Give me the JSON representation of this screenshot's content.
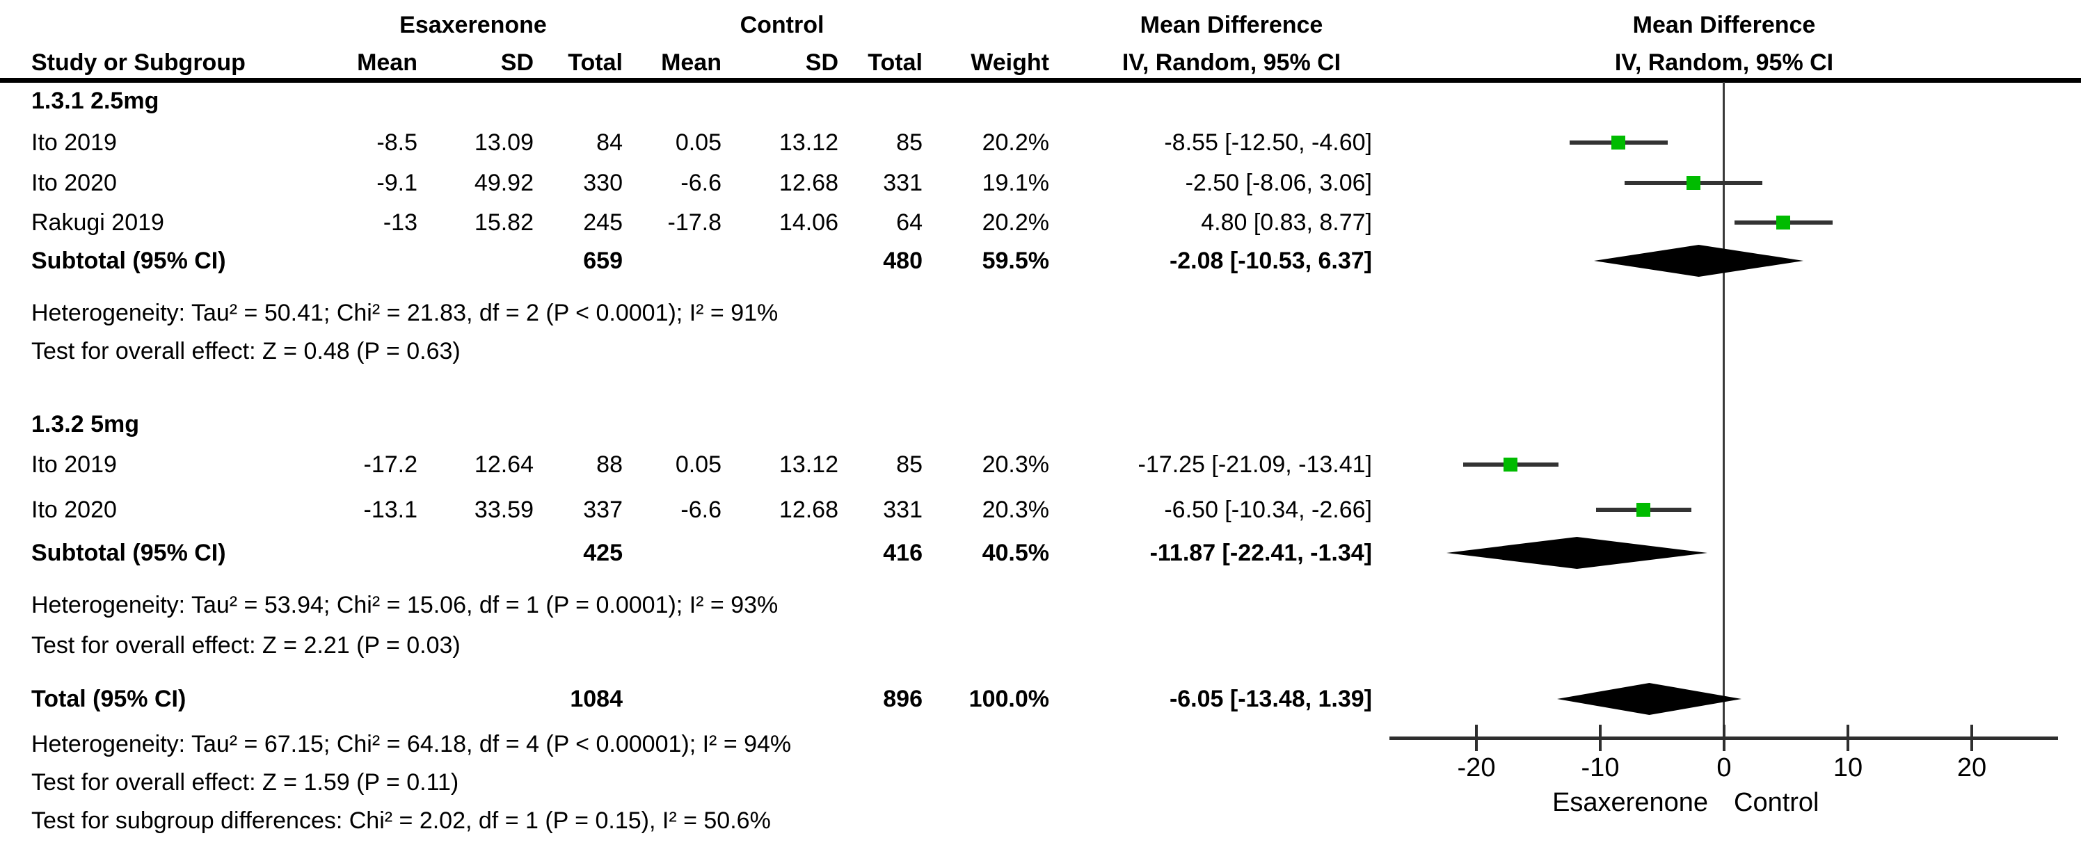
{
  "headers": {
    "esaxerenone": "Esaxerenone",
    "control": "Control",
    "md_table": "Mean Difference",
    "md_plot": "Mean Difference",
    "study_or_subgroup": "Study or Subgroup",
    "mean": "Mean",
    "sd": "SD",
    "total": "Total",
    "weight": "Weight",
    "iv_random": "IV, Random, 95% CI"
  },
  "table": {
    "sections": [
      {
        "label": "1.3.1 2.5mg",
        "studies": [
          {
            "name": "Ito 2019",
            "mean_e": "-8.5",
            "sd_e": "13.09",
            "n_e": "84",
            "mean_c": "0.05",
            "sd_c": "13.12",
            "n_c": "85",
            "weight": "20.2%",
            "md_ci": "-8.55 [-12.50, -4.60]"
          },
          {
            "name": "Ito 2020",
            "mean_e": "-9.1",
            "sd_e": "49.92",
            "n_e": "330",
            "mean_c": "-6.6",
            "sd_c": "12.68",
            "n_c": "331",
            "weight": "19.1%",
            "md_ci": "-2.50 [-8.06, 3.06]"
          },
          {
            "name": "Rakugi 2019",
            "mean_e": "-13",
            "sd_e": "15.82",
            "n_e": "245",
            "mean_c": "-17.8",
            "sd_c": "14.06",
            "n_c": "64",
            "weight": "20.2%",
            "md_ci": "4.80 [0.83, 8.77]"
          }
        ],
        "subtotal": {
          "label": "Subtotal (95% CI)",
          "n_e": "659",
          "n_c": "480",
          "weight": "59.5%",
          "md_ci": "-2.08 [-10.53, 6.37]"
        },
        "heterogeneity": "Heterogeneity: Tau² = 50.41; Chi² = 21.83, df = 2 (P < 0.0001); I² = 91%",
        "overall_effect": "Test for overall effect: Z = 0.48 (P = 0.63)"
      },
      {
        "label": "1.3.2 5mg",
        "studies": [
          {
            "name": "Ito 2019",
            "mean_e": "-17.2",
            "sd_e": "12.64",
            "n_e": "88",
            "mean_c": "0.05",
            "sd_c": "13.12",
            "n_c": "85",
            "weight": "20.3%",
            "md_ci": "-17.25 [-21.09, -13.41]"
          },
          {
            "name": "Ito 2020",
            "mean_e": "-13.1",
            "sd_e": "33.59",
            "n_e": "337",
            "mean_c": "-6.6",
            "sd_c": "12.68",
            "n_c": "331",
            "weight": "20.3%",
            "md_ci": "-6.50 [-10.34, -2.66]"
          }
        ],
        "subtotal": {
          "label": "Subtotal (95% CI)",
          "n_e": "425",
          "n_c": "416",
          "weight": "40.5%",
          "md_ci": "-11.87 [-22.41, -1.34]"
        },
        "heterogeneity": "Heterogeneity: Tau² = 53.94; Chi² = 15.06, df = 1 (P = 0.0001); I² = 93%",
        "overall_effect": "Test for overall effect: Z = 2.21 (P = 0.03)"
      }
    ],
    "total": {
      "label": "Total (95% CI)",
      "n_e": "1084",
      "n_c": "896",
      "weight": "100.0%",
      "md_ci": "-6.05 [-13.48, 1.39]"
    },
    "total_heterogeneity": "Heterogeneity: Tau² = 67.15; Chi² = 64.18, df = 4 (P < 0.00001); I² = 94%",
    "total_overall_effect": "Test for overall effect: Z = 1.59 (P = 0.11)",
    "subgroup_differences": "Test for subgroup differences: Chi² = 2.02, df = 1 (P = 0.15), I² = 50.6%"
  },
  "chart_data": {
    "type": "scatter",
    "subtype": "forest-plot",
    "title": "Mean Difference",
    "effect_measure": "IV, Random, 95% CI",
    "x_ticks": [
      -20,
      -10,
      0,
      10,
      20
    ],
    "xlim": [
      -27,
      27
    ],
    "zero_line": 0,
    "favours_left": "Esaxerenone",
    "favours_right": "Control",
    "marker_color": "#00bb00",
    "ci_line_color": "#333333",
    "diamond_color": "#000000",
    "studies": [
      {
        "group": "1.3.1 2.5mg",
        "name": "Ito 2019",
        "md": -8.55,
        "ci": [
          -12.5,
          -4.6
        ],
        "weight_pct": 20.2
      },
      {
        "group": "1.3.1 2.5mg",
        "name": "Ito 2020",
        "md": -2.5,
        "ci": [
          -8.06,
          3.06
        ],
        "weight_pct": 19.1
      },
      {
        "group": "1.3.1 2.5mg",
        "name": "Rakugi 2019",
        "md": 4.8,
        "ci": [
          0.83,
          8.77
        ],
        "weight_pct": 20.2
      },
      {
        "group": "1.3.2 5mg",
        "name": "Ito 2019",
        "md": -17.25,
        "ci": [
          -21.09,
          -13.41
        ],
        "weight_pct": 20.3
      },
      {
        "group": "1.3.2 5mg",
        "name": "Ito 2020",
        "md": -6.5,
        "ci": [
          -10.34,
          -2.66
        ],
        "weight_pct": 20.3
      }
    ],
    "subtotals": [
      {
        "group": "1.3.1 2.5mg",
        "md": -2.08,
        "ci": [
          -10.53,
          6.37
        ]
      },
      {
        "group": "1.3.2 5mg",
        "md": -11.87,
        "ci": [
          -22.41,
          -1.34
        ]
      }
    ],
    "total": {
      "md": -6.05,
      "ci": [
        -13.48,
        1.39
      ]
    }
  }
}
